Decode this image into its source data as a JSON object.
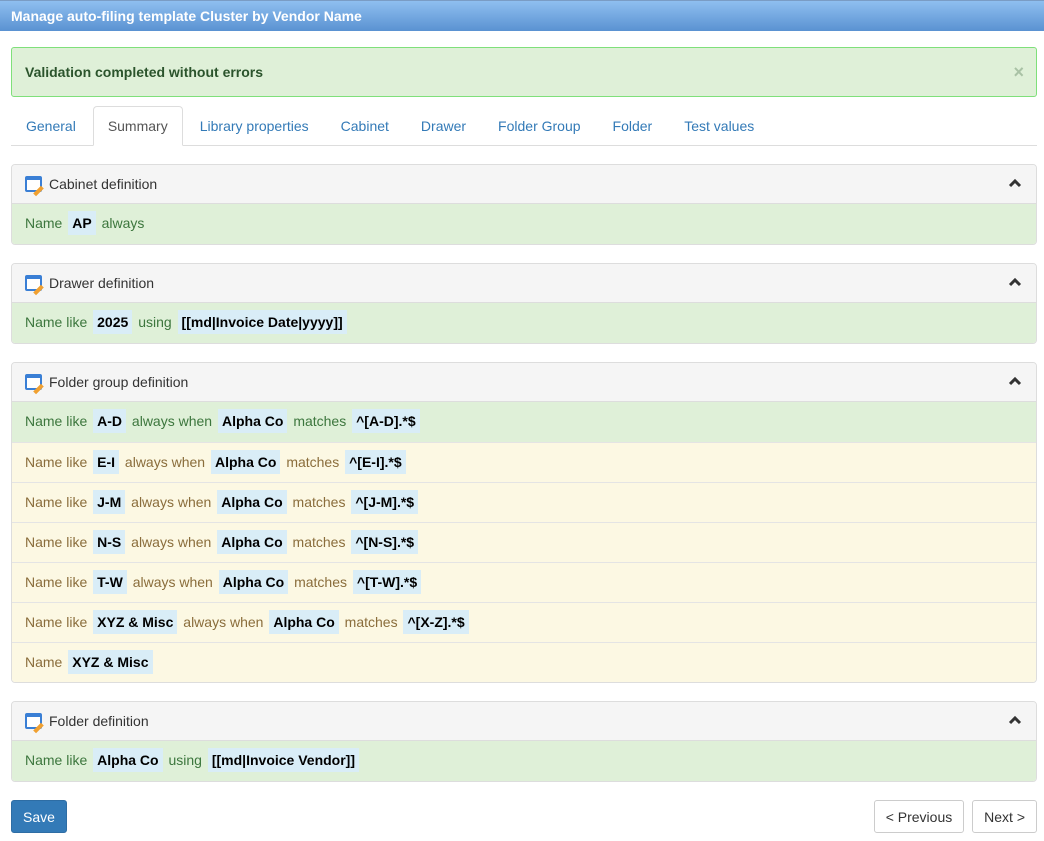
{
  "window": {
    "title": "Manage auto-filing template Cluster by Vendor Name"
  },
  "alert": {
    "message": "Validation completed without errors",
    "close": "×"
  },
  "tabs": [
    {
      "label": "General"
    },
    {
      "label": "Summary",
      "active": true
    },
    {
      "label": "Library properties"
    },
    {
      "label": "Cabinet"
    },
    {
      "label": "Drawer"
    },
    {
      "label": "Folder Group"
    },
    {
      "label": "Folder"
    },
    {
      "label": "Test values"
    }
  ],
  "panels": [
    {
      "title": "Cabinet definition",
      "rows": [
        {
          "status": "success",
          "segments": [
            {
              "t": "Name"
            },
            {
              "t": "AP",
              "hl": true
            },
            {
              "t": "always"
            }
          ]
        }
      ]
    },
    {
      "title": "Drawer definition",
      "rows": [
        {
          "status": "success",
          "segments": [
            {
              "t": "Name like"
            },
            {
              "t": "2025",
              "hl": true
            },
            {
              "t": "using"
            },
            {
              "t": "[[md|Invoice Date|yyyy]]",
              "hl": true
            }
          ]
        }
      ]
    },
    {
      "title": "Folder group definition",
      "rows": [
        {
          "status": "success",
          "segments": [
            {
              "t": "Name like"
            },
            {
              "t": "A-D",
              "hl": true
            },
            {
              "t": "always when"
            },
            {
              "t": "Alpha Co",
              "hl": true
            },
            {
              "t": "matches"
            },
            {
              "t": "^[A-D].*$",
              "hl": true
            }
          ]
        },
        {
          "status": "warning",
          "segments": [
            {
              "t": "Name like"
            },
            {
              "t": "E-I",
              "hl": true
            },
            {
              "t": "always when"
            },
            {
              "t": "Alpha Co",
              "hl": true
            },
            {
              "t": "matches"
            },
            {
              "t": "^[E-I].*$",
              "hl": true
            }
          ]
        },
        {
          "status": "warning",
          "segments": [
            {
              "t": "Name like"
            },
            {
              "t": "J-M",
              "hl": true
            },
            {
              "t": "always when"
            },
            {
              "t": "Alpha Co",
              "hl": true
            },
            {
              "t": "matches"
            },
            {
              "t": "^[J-M].*$",
              "hl": true
            }
          ]
        },
        {
          "status": "warning",
          "segments": [
            {
              "t": "Name like"
            },
            {
              "t": "N-S",
              "hl": true
            },
            {
              "t": "always when"
            },
            {
              "t": "Alpha Co",
              "hl": true
            },
            {
              "t": "matches"
            },
            {
              "t": "^[N-S].*$",
              "hl": true
            }
          ]
        },
        {
          "status": "warning",
          "segments": [
            {
              "t": "Name like"
            },
            {
              "t": "T-W",
              "hl": true
            },
            {
              "t": "always when"
            },
            {
              "t": "Alpha Co",
              "hl": true
            },
            {
              "t": "matches"
            },
            {
              "t": "^[T-W].*$",
              "hl": true
            }
          ]
        },
        {
          "status": "warning",
          "segments": [
            {
              "t": "Name like"
            },
            {
              "t": "XYZ & Misc",
              "hl": true
            },
            {
              "t": "always when"
            },
            {
              "t": "Alpha Co",
              "hl": true
            },
            {
              "t": "matches"
            },
            {
              "t": "^[X-Z].*$",
              "hl": true
            }
          ]
        },
        {
          "status": "warning",
          "segments": [
            {
              "t": "Name"
            },
            {
              "t": "XYZ & Misc",
              "hl": true
            }
          ]
        }
      ]
    },
    {
      "title": "Folder definition",
      "rows": [
        {
          "status": "success",
          "segments": [
            {
              "t": "Name like"
            },
            {
              "t": "Alpha Co",
              "hl": true
            },
            {
              "t": "using"
            },
            {
              "t": "[[md|Invoice Vendor]]",
              "hl": true
            }
          ]
        }
      ]
    }
  ],
  "buttons": {
    "save": "Save",
    "previous": "< Previous",
    "next": "Next >"
  },
  "colors": {
    "success_bg": "#dff0d8",
    "warning_bg": "#fcf8e3",
    "highlight_bg": "#d9edf7",
    "primary": "#337ab7"
  }
}
